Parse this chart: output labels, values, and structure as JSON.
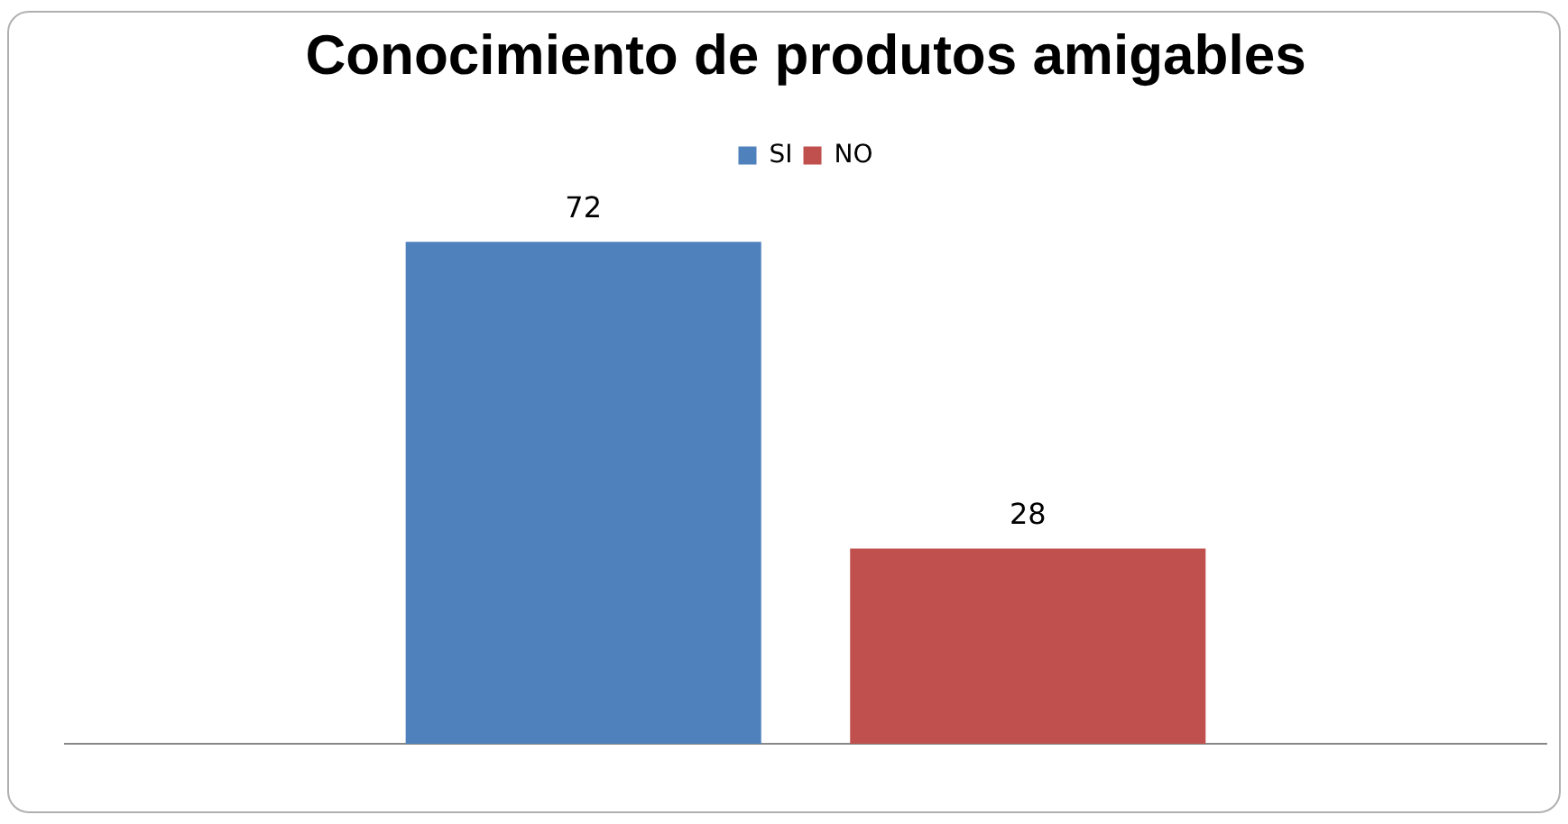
{
  "chart_data": {
    "type": "bar",
    "title": "Conocimiento de produtos amigables",
    "categories": [
      null
    ],
    "series": [
      {
        "name": "SI",
        "color": "#4f81bd",
        "values": [
          72
        ]
      },
      {
        "name": "NO",
        "color": "#c0504d",
        "values": [
          28
        ]
      }
    ],
    "data_labels": true,
    "legend": "top",
    "grid": false
  }
}
